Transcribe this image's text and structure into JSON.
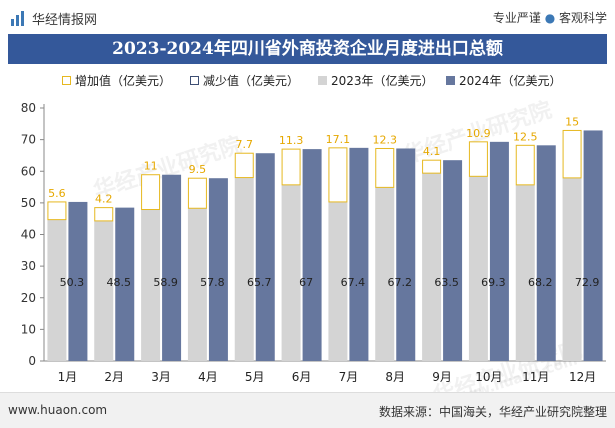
{
  "header": {
    "brand": "华经情报网",
    "slogan_left": "专业严谨",
    "slogan_right": "客观科学",
    "logo_icon": "chart-logo-icon"
  },
  "title": "2023-2024年四川省外商投资企业月度进出口总额",
  "legend": {
    "increase": "增加值（亿美元）",
    "decrease": "减少值（亿美元）",
    "y2023": "2023年（亿美元）",
    "y2024": "2024年（亿美元）"
  },
  "footer": {
    "url": "www.huaon.com",
    "source": "数据来源：中国海关，华经产业研究院整理"
  },
  "watermark": {
    "text1": "华经产业研究院",
    "text2": "www.huaon.com"
  },
  "chart_data": {
    "type": "bar",
    "title": "2023-2024年四川省外商投资企业月度进出口总额",
    "categories": [
      "1月",
      "2月",
      "3月",
      "4月",
      "5月",
      "6月",
      "7月",
      "8月",
      "9月",
      "10月",
      "11月",
      "12月"
    ],
    "series": [
      {
        "name": "2023年（亿美元）",
        "values": [
          44.7,
          44.3,
          47.9,
          48.3,
          58.0,
          55.7,
          50.3,
          54.9,
          59.4,
          58.4,
          55.7,
          57.9
        ]
      },
      {
        "name": "2024年（亿美元）",
        "values": [
          50.3,
          48.5,
          58.9,
          57.8,
          65.7,
          67,
          67.4,
          67.2,
          63.5,
          69.3,
          68.2,
          72.9
        ]
      },
      {
        "name": "增加值（亿美元）",
        "values": [
          5.6,
          4.2,
          11,
          9.5,
          7.7,
          11.3,
          17.1,
          12.3,
          4.1,
          10.9,
          12.5,
          15
        ]
      },
      {
        "name": "减少值（亿美元）",
        "values": [
          0,
          0,
          0,
          0,
          0,
          0,
          0,
          0,
          0,
          0,
          0,
          0
        ]
      }
    ],
    "y_axis": {
      "min": 0,
      "max": 80,
      "ticks": [
        0,
        10,
        20,
        30,
        40,
        50,
        60,
        70,
        80
      ]
    },
    "colors": {
      "y2023": "#d4d4d4",
      "y2024": "#66779e",
      "increase": "#e6b820",
      "decrease": "#3e4f74",
      "increase_label": "#e6a800"
    }
  }
}
